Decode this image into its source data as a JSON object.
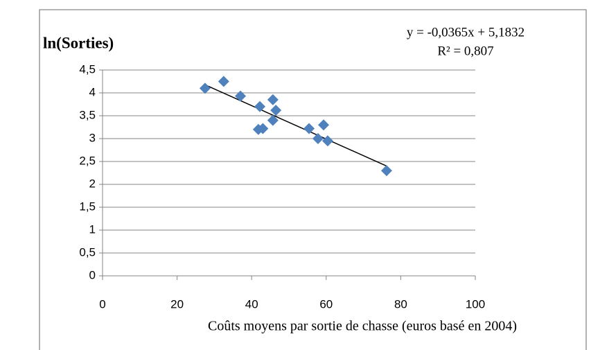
{
  "chart_data": {
    "type": "scatter",
    "title": "ln(Sorties)",
    "annotations": [
      "y = -0,0365x + 5,1832",
      "R² = 0,807"
    ],
    "x_label": "Coûts moyens par sortie de chasse (euros basé en 2004)",
    "series": [
      {
        "color": "#4f81bd",
        "x": [
          27.5,
          32.5,
          37,
          42.2,
          41.8,
          43,
          45.7,
          46.5,
          45.7,
          55.4,
          57.8,
          59.3,
          60.4,
          76.2
        ],
        "values": [
          4.1,
          4.25,
          3.93,
          3.7,
          3.2,
          3.22,
          3.85,
          3.62,
          3.4,
          3.22,
          3.0,
          3.3,
          2.95,
          2.3
        ]
      }
    ],
    "trendline": true,
    "xlim": [
      0,
      100
    ],
    "xticks": [
      0,
      20,
      40,
      60,
      80,
      100
    ],
    "ylim": [
      0,
      4.5
    ],
    "yticks": [
      0,
      {
        "value": 0.5,
        "label": "0,5"
      },
      1,
      {
        "value": 1.5,
        "label": "1,5"
      },
      2,
      {
        "value": 2.5,
        "label": "2,5"
      },
      3,
      {
        "value": 3.5,
        "label": "3,5"
      },
      4,
      {
        "value": 4.5,
        "label": "4,5"
      }
    ],
    "grid": true
  }
}
